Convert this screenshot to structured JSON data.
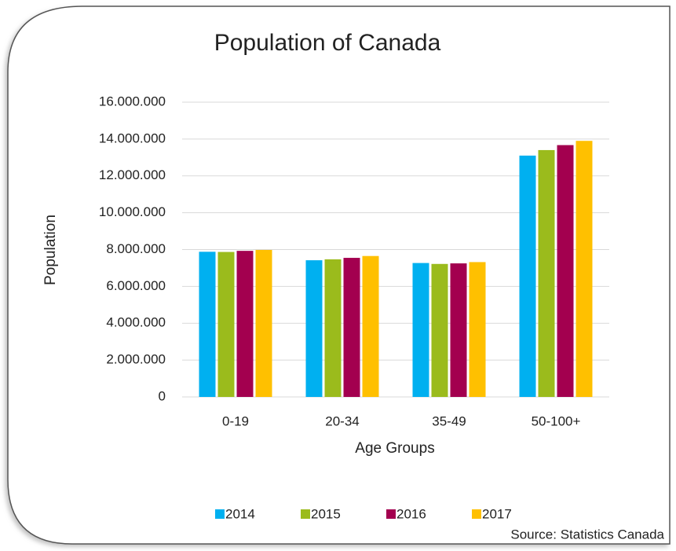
{
  "chart_data": {
    "type": "bar",
    "title": "Population of Canada",
    "x_label": "Age Groups",
    "y_label": "Population",
    "source": "Source: Statistics Canada",
    "categories": [
      "0-19",
      "20-34",
      "35-49",
      "50-100+"
    ],
    "series": [
      {
        "name": "2014",
        "color": "#00b0f0",
        "values": [
          7880000,
          7420000,
          7270000,
          13100000
        ]
      },
      {
        "name": "2015",
        "color": "#9bbb1c",
        "values": [
          7870000,
          7470000,
          7220000,
          13400000
        ]
      },
      {
        "name": "2016",
        "color": "#a3004f",
        "values": [
          7930000,
          7550000,
          7250000,
          13670000
        ]
      },
      {
        "name": "2017",
        "color": "#ffc000",
        "values": [
          7980000,
          7650000,
          7320000,
          13900000
        ]
      }
    ],
    "ylim": [
      0,
      16000000
    ],
    "yticks": [
      0,
      {
        "value": 2000000,
        "label": "2.000.000"
      },
      {
        "value": 4000000,
        "label": "4.000.000"
      },
      {
        "value": 6000000,
        "label": "6.000.000"
      },
      {
        "value": 8000000,
        "label": "8.000.000"
      },
      {
        "value": 10000000,
        "label": "10.000.000"
      },
      {
        "value": 12000000,
        "label": "12.000.000"
      },
      {
        "value": 14000000,
        "label": "14.000.000"
      },
      {
        "value": 16000000,
        "label": "16.000.000"
      }
    ],
    "grid": true,
    "legend": "bottom"
  }
}
